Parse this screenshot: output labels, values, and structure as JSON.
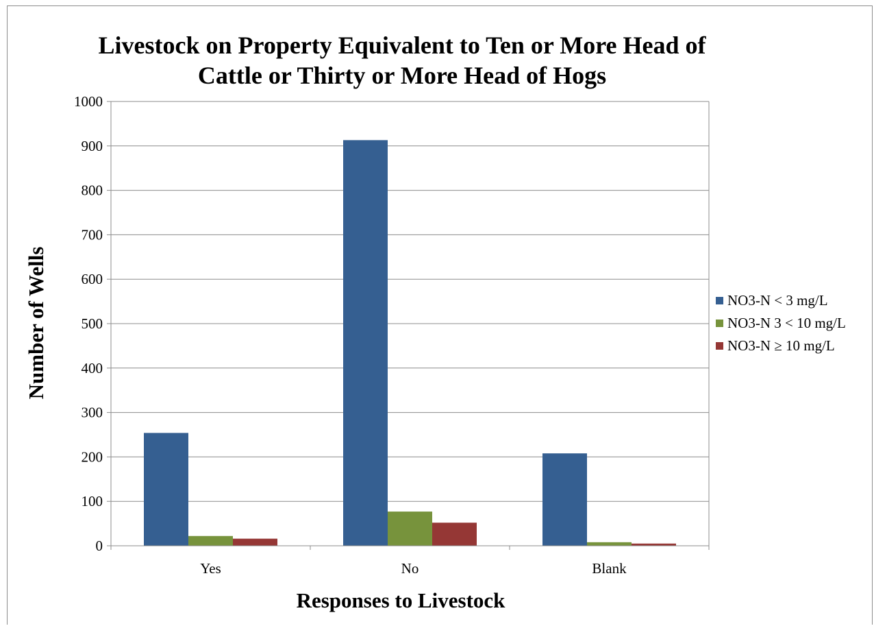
{
  "chart_data": {
    "type": "bar",
    "title_lines": [
      "Livestock on  Property Equivalent to Ten or More Head of",
      "Cattle or Thirty or More Head of Hogs"
    ],
    "xlabel": "Responses to Livestock",
    "ylabel": "Number of Wells",
    "categories": [
      "Yes",
      "No",
      "Blank"
    ],
    "series": [
      {
        "name": "NO3-N < 3 mg/L",
        "color": "#355F91",
        "values": [
          254,
          913,
          208
        ]
      },
      {
        "name": "NO3-N 3 < 10 mg/L",
        "color": "#77933C",
        "values": [
          22,
          77,
          8
        ]
      },
      {
        "name": "NO3-N ≥ 10 mg/L",
        "color": "#953735",
        "values": [
          16,
          52,
          5
        ]
      }
    ],
    "ylim": [
      0,
      1000
    ],
    "yticks": [
      "0",
      "100",
      "200",
      "300",
      "400",
      "500",
      "600",
      "700",
      "800",
      "900",
      "1000"
    ],
    "grid": true,
    "legend_position": "right"
  }
}
